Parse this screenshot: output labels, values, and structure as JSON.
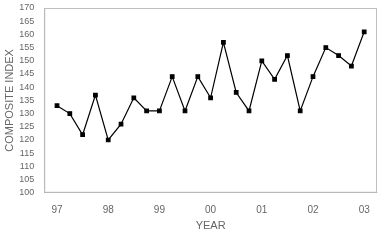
{
  "chart_data": {
    "type": "line",
    "x": [
      97.0,
      97.25,
      97.5,
      97.75,
      98.0,
      98.25,
      98.5,
      98.75,
      99.0,
      99.25,
      99.5,
      99.75,
      100.0,
      100.25,
      100.5,
      100.75,
      101.0,
      101.25,
      101.5,
      101.75,
      102.0,
      102.25,
      102.5,
      102.75,
      103.0
    ],
    "values": [
      133,
      130,
      122,
      137,
      120,
      126,
      136,
      131,
      131,
      144,
      131,
      144,
      136,
      157,
      138,
      131,
      150,
      143,
      152,
      131,
      144,
      155,
      152,
      148,
      161
    ],
    "xlabel": "YEAR",
    "ylabel": "COMPOSITE INDEX",
    "xlim": [
      96.75,
      103.25
    ],
    "ylim": [
      100,
      170
    ],
    "xticks": [
      97,
      98,
      99,
      {
        "value": 100,
        "label": "00"
      },
      {
        "value": 101,
        "label": "01"
      },
      {
        "value": 102,
        "label": "02"
      },
      {
        "value": 103,
        "label": "03"
      }
    ],
    "yticks": [
      100,
      105,
      110,
      115,
      120,
      125,
      130,
      135,
      140,
      145,
      150,
      155,
      160,
      165,
      170
    ],
    "color": "#000000",
    "marker": "square",
    "grid": false
  }
}
